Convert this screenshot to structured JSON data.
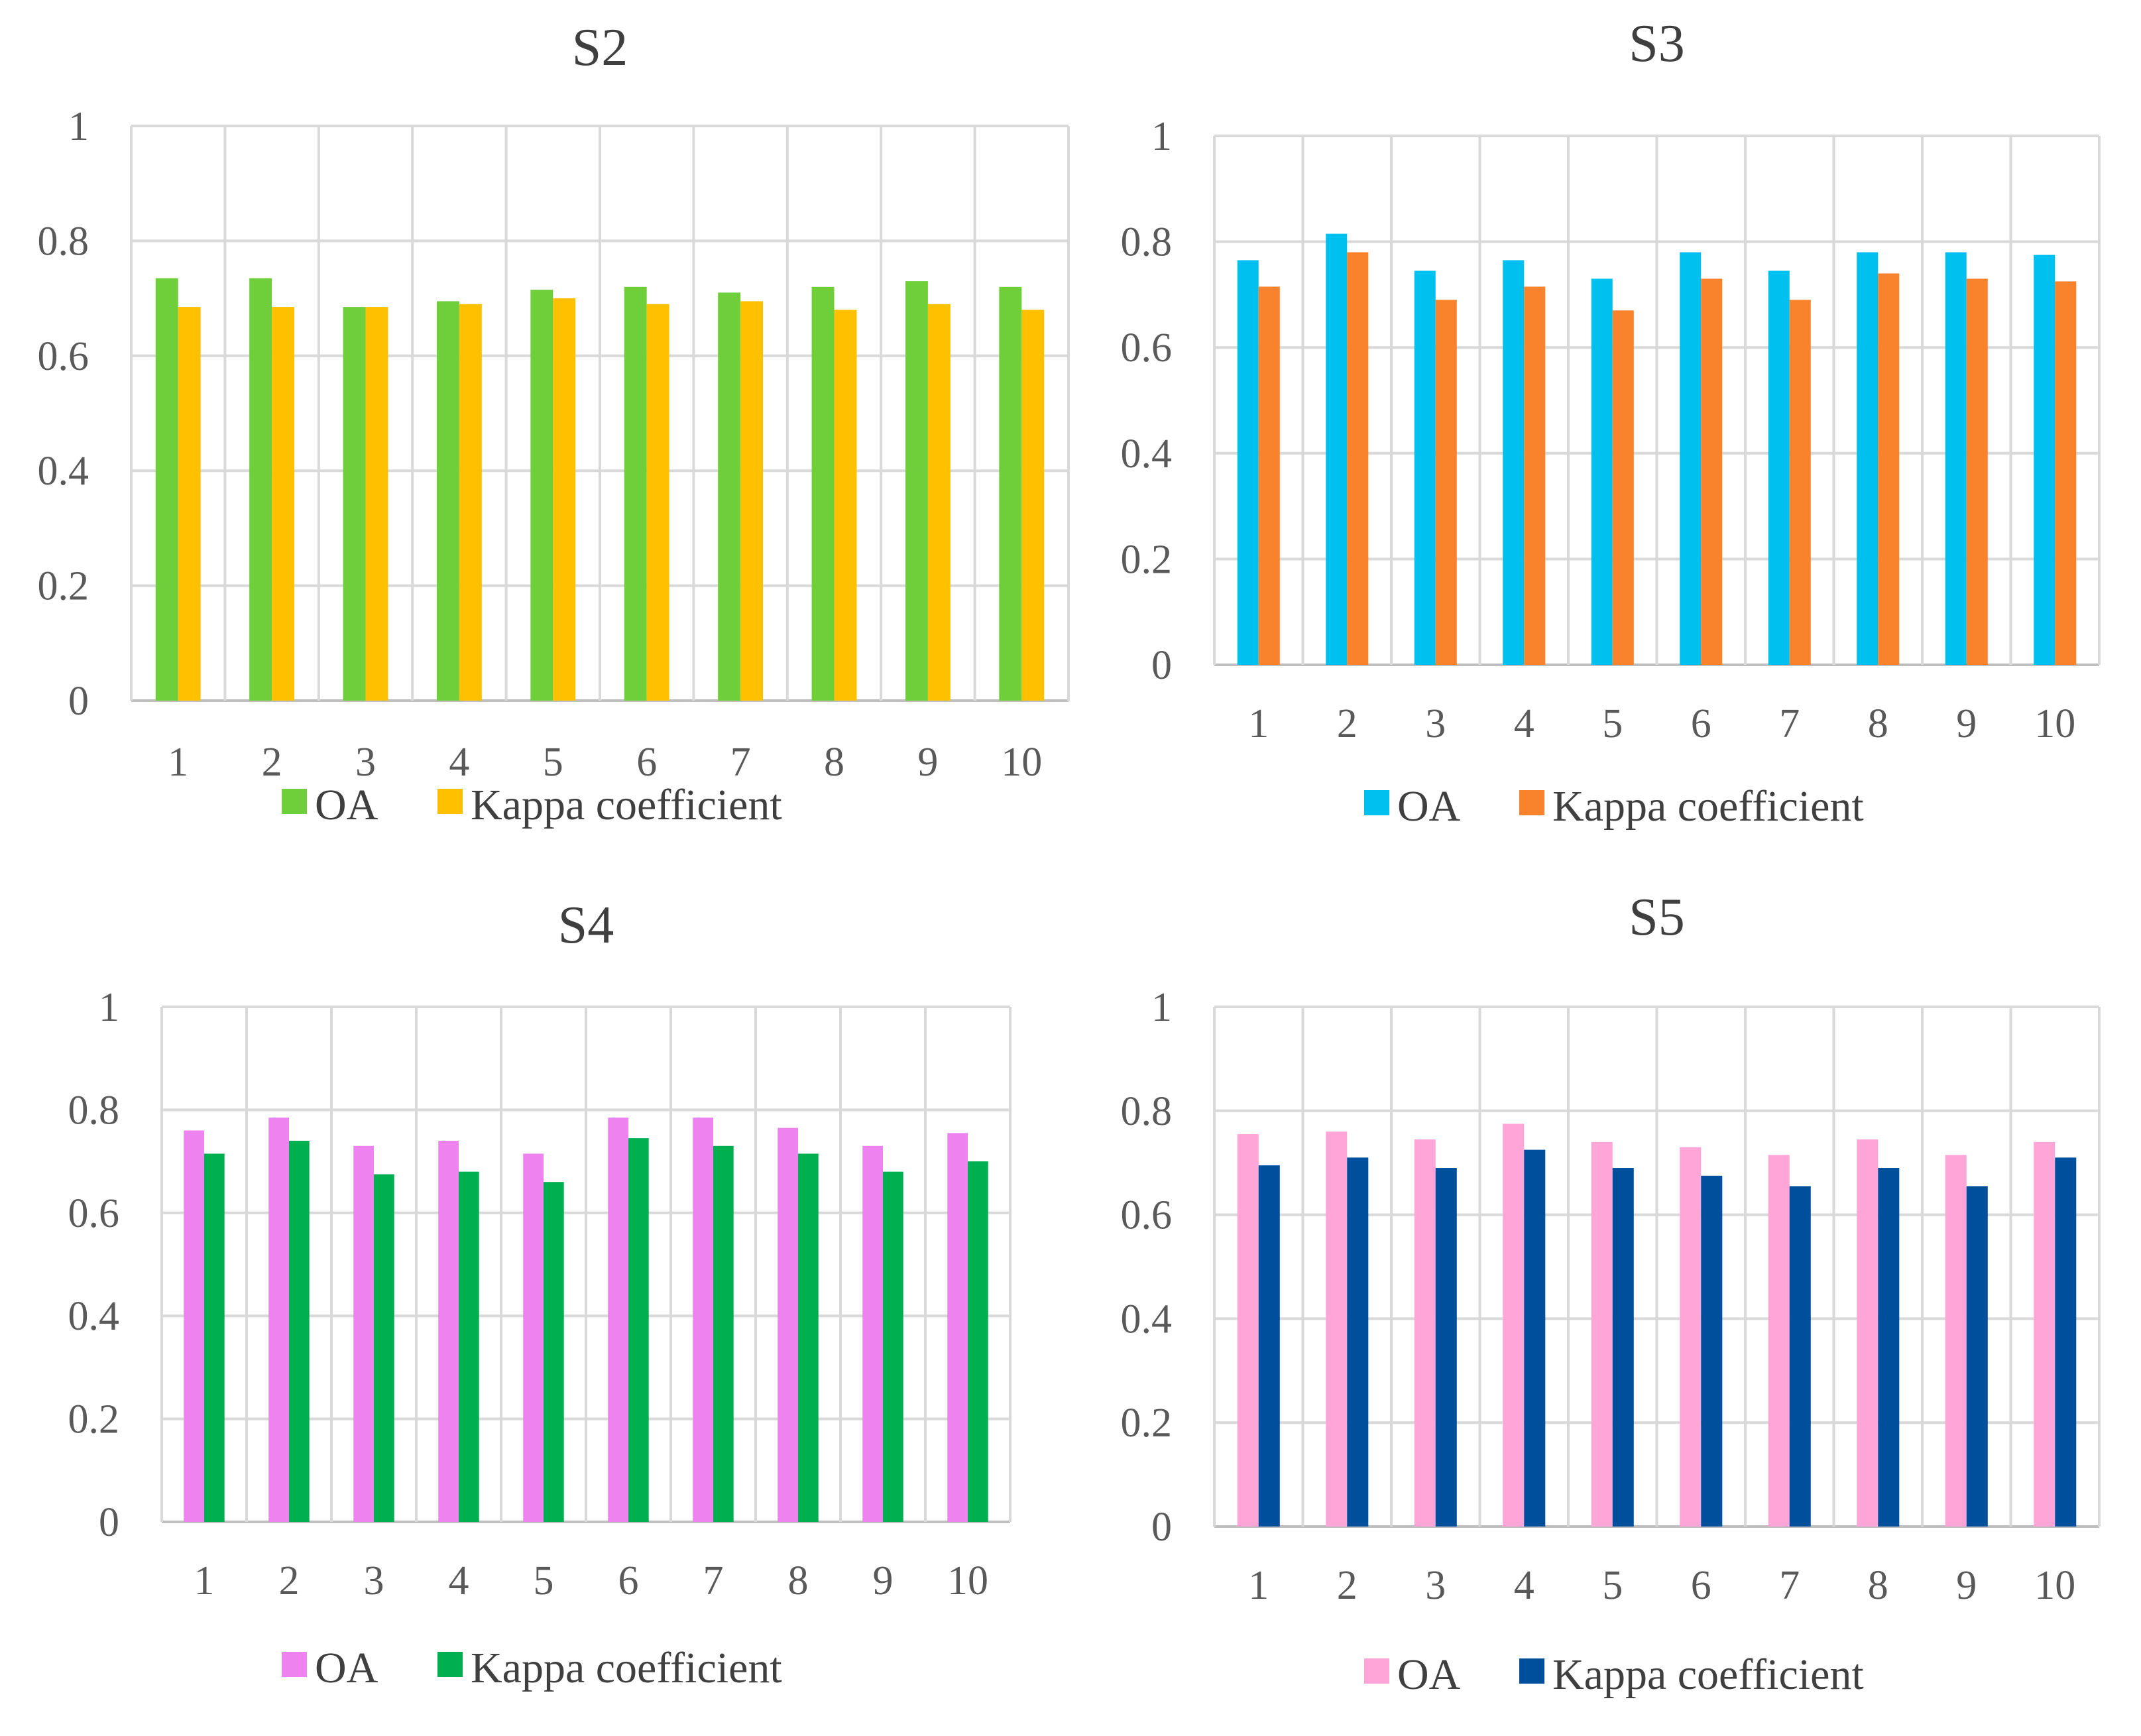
{
  "chart_data": [
    {
      "type": "bar",
      "title": "S2",
      "categories": [
        "1",
        "2",
        "3",
        "4",
        "5",
        "6",
        "7",
        "8",
        "9",
        "10"
      ],
      "ylim": [
        0,
        1
      ],
      "yticks": [
        "0",
        "0.2",
        "0.4",
        "0.6",
        "0.8",
        "1"
      ],
      "grid": true,
      "legend_position": "bottom",
      "series": [
        {
          "name": "OA",
          "color": "#6fcf3b",
          "values": [
            0.735,
            0.735,
            0.685,
            0.695,
            0.715,
            0.72,
            0.71,
            0.72,
            0.73,
            0.72
          ]
        },
        {
          "name": "Kappa coefficient",
          "color": "#ffc000",
          "values": [
            0.685,
            0.685,
            0.685,
            0.69,
            0.7,
            0.69,
            0.695,
            0.68,
            0.69,
            0.68
          ]
        }
      ]
    },
    {
      "type": "bar",
      "title": "S3",
      "categories": [
        "1",
        "2",
        "3",
        "4",
        "5",
        "6",
        "7",
        "8",
        "9",
        "10"
      ],
      "ylim": [
        0,
        1
      ],
      "yticks": [
        "0",
        "0.2",
        "0.4",
        "0.6",
        "0.8",
        "1"
      ],
      "grid": true,
      "legend_position": "bottom",
      "series": [
        {
          "name": "OA",
          "color": "#00c0f0",
          "values": [
            0.765,
            0.815,
            0.745,
            0.765,
            0.73,
            0.78,
            0.745,
            0.78,
            0.78,
            0.775
          ]
        },
        {
          "name": "Kappa coefficient",
          "color": "#f9822d",
          "values": [
            0.715,
            0.78,
            0.69,
            0.715,
            0.67,
            0.73,
            0.69,
            0.74,
            0.73,
            0.725
          ]
        }
      ]
    },
    {
      "type": "bar",
      "title": "S4",
      "categories": [
        "1",
        "2",
        "3",
        "4",
        "5",
        "6",
        "7",
        "8",
        "9",
        "10"
      ],
      "ylim": [
        0,
        1
      ],
      "yticks": [
        "0",
        "0.2",
        "0.4",
        "0.6",
        "0.8",
        "1"
      ],
      "grid": true,
      "legend_position": "bottom",
      "series": [
        {
          "name": "OA",
          "color": "#ee82ee",
          "values": [
            0.76,
            0.785,
            0.73,
            0.74,
            0.715,
            0.785,
            0.785,
            0.765,
            0.73,
            0.755
          ]
        },
        {
          "name": "Kappa coefficient",
          "color": "#00b050",
          "values": [
            0.715,
            0.74,
            0.675,
            0.68,
            0.66,
            0.745,
            0.73,
            0.715,
            0.68,
            0.7
          ]
        }
      ]
    },
    {
      "type": "bar",
      "title": "S5",
      "categories": [
        "1",
        "2",
        "3",
        "4",
        "5",
        "6",
        "7",
        "8",
        "9",
        "10"
      ],
      "ylim": [
        0,
        1
      ],
      "yticks": [
        "0",
        "0.2",
        "0.4",
        "0.6",
        "0.8",
        "1"
      ],
      "grid": true,
      "legend_position": "bottom",
      "series": [
        {
          "name": "OA",
          "color": "#ffa5d8",
          "values": [
            0.755,
            0.76,
            0.745,
            0.775,
            0.74,
            0.73,
            0.715,
            0.745,
            0.715,
            0.74
          ]
        },
        {
          "name": "Kappa coefficient",
          "color": "#004f9c",
          "values": [
            0.695,
            0.71,
            0.69,
            0.725,
            0.69,
            0.675,
            0.655,
            0.69,
            0.655,
            0.71
          ]
        }
      ]
    }
  ]
}
